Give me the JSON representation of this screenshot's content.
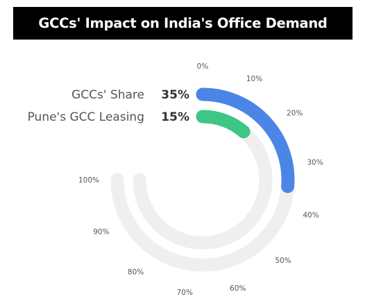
{
  "chart_data": {
    "type": "radial-bar",
    "title": "GCCs' Impact on India's Office Demand",
    "max": 100,
    "ticks": [
      "0%",
      "10%",
      "20%",
      "30%",
      "40%",
      "50%",
      "60%",
      "70%",
      "80%",
      "90%",
      "100%"
    ],
    "series": [
      {
        "name": "GCCs' Share",
        "value": 35,
        "value_label": "35%",
        "color": "#4B86E6"
      },
      {
        "name": "Pune's GCC Leasing",
        "value": 15,
        "value_label": "15%",
        "color": "#3DC684"
      }
    ],
    "track_color": "#EFEFEF"
  }
}
